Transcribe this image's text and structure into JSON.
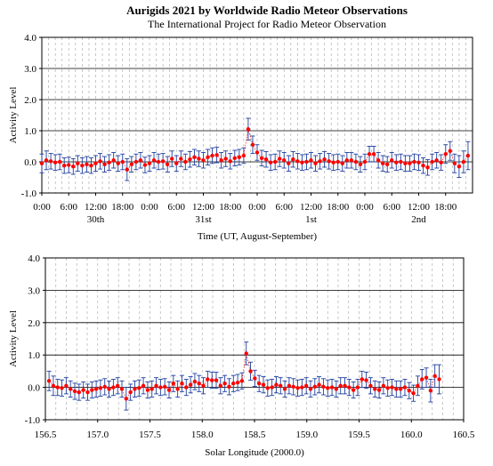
{
  "title": "Aurigids 2021 by Worldwide  Radio  Meteor  Observations",
  "subtitle": "The International Project for Radio Meteor Observation",
  "chart_data": [
    {
      "type": "scatter",
      "xlabel": "Time (UT, August-September)",
      "ylabel": "Activity Level",
      "ylim": [
        -1.0,
        4.0
      ],
      "yticks": [
        "4.0",
        "3.0",
        "2.0",
        "1.0",
        "0.0",
        "-1.0"
      ],
      "xtick_labels": [
        "0:00",
        "6:00",
        "12:00",
        "18:00",
        "0:00",
        "6:00",
        "12:00",
        "18:00",
        "0:00",
        "6:00",
        "12:00",
        "18:00",
        "0:00",
        "6:00",
        "12:00",
        "18:00"
      ],
      "day_labels": [
        "30th",
        "31st",
        "1st",
        "2nd"
      ],
      "grid": "horizontal solid at 1.0 steps, vertical dashed every 3 hours",
      "series": [
        {
          "color": "#ff0000",
          "x": [
            0.0,
            1.0,
            2.0,
            3.0,
            4.0,
            5.0,
            6.0,
            7.0,
            8.0,
            9.0,
            10.0,
            11.0,
            12.0,
            13.0,
            14.0,
            15.0,
            16.0,
            17.0,
            18.0,
            19.0,
            20.0,
            21.0,
            22.0,
            23.0,
            24.0,
            25.0,
            26.0,
            27.0,
            28.0,
            29.0,
            30.0,
            31.0,
            32.0,
            33.0,
            34.0,
            35.0,
            36.0,
            37.0,
            38.0,
            39.0,
            40.0,
            41.0,
            42.0,
            43.0,
            44.0,
            45.0,
            46.0,
            47.0,
            48.0,
            49.0,
            50.0,
            51.0,
            52.0,
            53.0,
            54.0,
            55.0,
            56.0,
            57.0,
            58.0,
            59.0,
            60.0,
            61.0,
            62.0,
            63.0,
            64.0,
            65.0,
            66.0,
            67.0,
            68.0,
            69.0,
            70.0,
            71.0,
            72.0,
            73.0,
            74.0,
            75.0,
            76.0,
            77.0,
            78.0,
            79.0,
            80.0,
            81.0,
            82.0,
            83.0,
            84.0,
            85.0,
            86.0,
            87.0,
            88.0,
            89.0,
            90.0,
            91.0,
            92.0,
            93.0,
            94.0,
            95.0
          ],
          "y": [
            -0.05,
            0.05,
            0.02,
            -0.02,
            0.0,
            -0.12,
            -0.1,
            -0.15,
            -0.05,
            -0.12,
            -0.08,
            -0.12,
            -0.05,
            0.02,
            -0.08,
            -0.02,
            0.05,
            -0.05,
            0.0,
            -0.25,
            -0.08,
            0.0,
            0.05,
            -0.1,
            -0.05,
            0.05,
            0.0,
            0.02,
            -0.08,
            0.1,
            -0.05,
            0.1,
            0.0,
            0.08,
            0.15,
            0.1,
            0.05,
            0.15,
            0.2,
            0.22,
            0.05,
            0.1,
            0.02,
            0.12,
            0.15,
            0.2,
            1.05,
            0.55,
            0.3,
            0.12,
            0.08,
            -0.02,
            0.0,
            0.1,
            0.05,
            -0.05,
            0.08,
            0.02,
            -0.02,
            0.0,
            0.05,
            -0.05,
            0.02,
            0.08,
            0.02,
            -0.02,
            0.0,
            -0.05,
            0.05,
            0.05,
            0.0,
            -0.08,
            0.0,
            0.25,
            0.25,
            0.05,
            -0.05,
            -0.08,
            0.05,
            -0.02,
            0.0,
            -0.05,
            -0.05,
            0.0,
            -0.02,
            -0.12,
            -0.18,
            0.0,
            0.05,
            -0.02,
            0.25,
            0.35,
            -0.05,
            -0.15,
            0.0,
            0.2
          ],
          "err": [
            0.3,
            0.3,
            0.25,
            0.25,
            0.25,
            0.25,
            0.25,
            0.25,
            0.25,
            0.25,
            0.25,
            0.25,
            0.25,
            0.25,
            0.25,
            0.25,
            0.25,
            0.25,
            0.25,
            0.35,
            0.25,
            0.25,
            0.25,
            0.25,
            0.25,
            0.25,
            0.25,
            0.25,
            0.25,
            0.25,
            0.25,
            0.25,
            0.25,
            0.25,
            0.25,
            0.25,
            0.25,
            0.25,
            0.25,
            0.25,
            0.25,
            0.25,
            0.25,
            0.25,
            0.25,
            0.25,
            0.35,
            0.28,
            0.25,
            0.25,
            0.25,
            0.25,
            0.25,
            0.25,
            0.25,
            0.25,
            0.25,
            0.25,
            0.25,
            0.25,
            0.25,
            0.25,
            0.25,
            0.25,
            0.25,
            0.25,
            0.25,
            0.25,
            0.25,
            0.25,
            0.25,
            0.25,
            0.25,
            0.25,
            0.25,
            0.25,
            0.25,
            0.25,
            0.25,
            0.25,
            0.25,
            0.25,
            0.25,
            0.25,
            0.25,
            0.25,
            0.25,
            0.25,
            0.25,
            0.25,
            0.3,
            0.3,
            0.3,
            0.35,
            0.35,
            0.45
          ]
        }
      ]
    },
    {
      "type": "scatter",
      "xlabel": "Solar Longitude  (2000.0)",
      "ylabel": "Activity Level",
      "xlim": [
        156.5,
        160.5
      ],
      "ylim": [
        -1.0,
        4.0
      ],
      "yticks": [
        "4.0",
        "3.0",
        "2.0",
        "1.0",
        "0.0",
        "-1.0"
      ],
      "xticks": [
        "156.5",
        "157.0",
        "157.5",
        "158.0",
        "158.5",
        "159.0",
        "159.5",
        "160.0",
        "160.5"
      ],
      "grid": "horizontal solid at 1.0 steps, vertical dashed every 0.1",
      "series": [
        {
          "color": "#ff0000",
          "x": [
            156.535,
            156.576,
            156.617,
            156.658,
            156.699,
            156.74,
            156.781,
            156.822,
            156.863,
            156.904,
            156.945,
            156.986,
            157.027,
            157.068,
            157.109,
            157.15,
            157.191,
            157.232,
            157.273,
            157.314,
            157.355,
            157.396,
            157.437,
            157.478,
            157.519,
            157.56,
            157.601,
            157.642,
            157.683,
            157.724,
            157.765,
            157.806,
            157.847,
            157.888,
            157.929,
            157.97,
            158.011,
            158.052,
            158.093,
            158.134,
            158.175,
            158.216,
            158.257,
            158.298,
            158.339,
            158.38,
            158.421,
            158.462,
            158.503,
            158.544,
            158.585,
            158.626,
            158.667,
            158.708,
            158.749,
            158.79,
            158.831,
            158.872,
            158.913,
            158.954,
            158.995,
            159.036,
            159.077,
            159.118,
            159.159,
            159.2,
            159.241,
            159.282,
            159.323,
            159.364,
            159.405,
            159.446,
            159.487,
            159.528,
            159.569,
            159.61,
            159.651,
            159.692,
            159.733,
            159.774,
            159.815,
            159.856,
            159.897,
            159.938,
            159.979,
            160.02,
            160.061,
            160.102,
            160.143,
            160.184,
            160.225,
            160.266
          ],
          "y": [
            0.2,
            0.05,
            0.0,
            -0.02,
            0.05,
            -0.05,
            -0.12,
            -0.15,
            -0.08,
            -0.15,
            -0.08,
            -0.05,
            -0.02,
            0.02,
            -0.05,
            0.0,
            0.05,
            -0.05,
            -0.35,
            -0.15,
            -0.05,
            -0.02,
            0.05,
            -0.08,
            -0.05,
            0.05,
            0.0,
            0.02,
            -0.08,
            0.12,
            -0.05,
            0.12,
            0.0,
            0.08,
            0.18,
            0.12,
            0.05,
            0.25,
            0.22,
            0.22,
            0.05,
            0.12,
            0.02,
            0.12,
            0.15,
            0.2,
            1.05,
            0.5,
            0.28,
            0.12,
            0.08,
            -0.02,
            0.0,
            0.08,
            0.05,
            -0.05,
            0.05,
            0.02,
            -0.02,
            0.0,
            0.05,
            -0.05,
            0.02,
            0.08,
            0.02,
            -0.02,
            0.0,
            -0.05,
            0.05,
            0.05,
            0.0,
            -0.08,
            0.0,
            0.25,
            0.22,
            0.05,
            -0.05,
            -0.08,
            0.05,
            -0.02,
            0.0,
            -0.05,
            -0.05,
            0.0,
            -0.1,
            -0.18,
            0.05,
            0.25,
            0.3,
            -0.1,
            0.35,
            0.25
          ],
          "err": [
            0.3,
            0.3,
            0.25,
            0.25,
            0.25,
            0.25,
            0.25,
            0.25,
            0.25,
            0.25,
            0.25,
            0.25,
            0.25,
            0.25,
            0.25,
            0.25,
            0.25,
            0.25,
            0.35,
            0.25,
            0.25,
            0.25,
            0.25,
            0.25,
            0.25,
            0.25,
            0.25,
            0.25,
            0.25,
            0.25,
            0.25,
            0.25,
            0.25,
            0.25,
            0.25,
            0.25,
            0.25,
            0.25,
            0.25,
            0.25,
            0.25,
            0.25,
            0.25,
            0.25,
            0.25,
            0.25,
            0.35,
            0.28,
            0.25,
            0.25,
            0.25,
            0.25,
            0.25,
            0.25,
            0.25,
            0.25,
            0.25,
            0.25,
            0.25,
            0.25,
            0.25,
            0.25,
            0.25,
            0.25,
            0.25,
            0.25,
            0.25,
            0.25,
            0.25,
            0.25,
            0.25,
            0.25,
            0.25,
            0.25,
            0.25,
            0.25,
            0.25,
            0.25,
            0.25,
            0.25,
            0.25,
            0.25,
            0.25,
            0.25,
            0.25,
            0.25,
            0.3,
            0.3,
            0.3,
            0.35,
            0.35,
            0.45
          ]
        }
      ]
    }
  ]
}
